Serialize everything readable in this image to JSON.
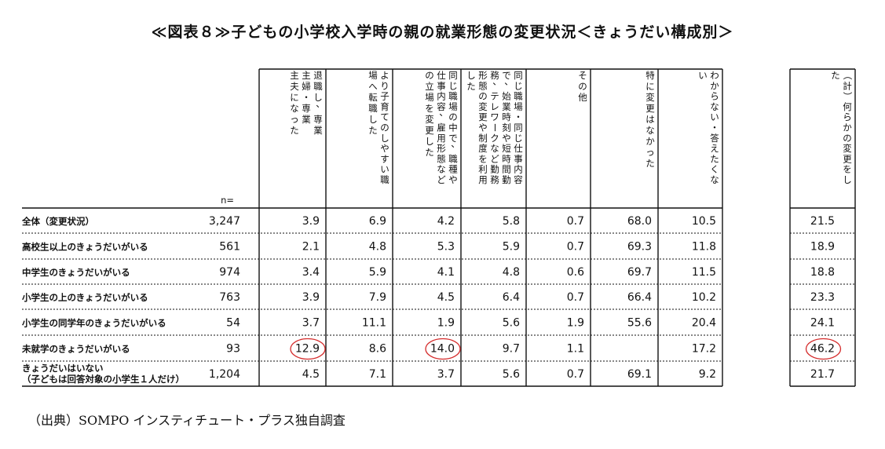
{
  "title": "≪図表８≫子どもの小学校入学時の親の就業形態の変更状況＜きょうだい構成別＞",
  "source": "（出典）SOMPO インスティチュート・プラス独自調査",
  "chart_data": {
    "type": "table",
    "n_header": "n=",
    "columns": [
      {
        "label": "退職し、専業主婦・専業主夫になった",
        "lines": [
          "退職し、専業",
          "主婦・専業",
          "主夫になった"
        ]
      },
      {
        "label": "より子育てのしやすい職場へ転職した",
        "lines": [
          "より子育てのしやすい職",
          "場へ転職した"
        ]
      },
      {
        "label": "同じ職場の中で、職種や仕事内容、雇用形態などの立場を変更した",
        "lines": [
          "同じ職場の中で、職種や",
          "仕事内容、雇用形態など",
          "の立場を変更した"
        ]
      },
      {
        "label": "同じ職場・同じ仕事内容で、始業時刻や短時間勤務、テレワークなど勤務形態の変更や制度を利用した",
        "lines": [
          "同じ職場・同じ仕事内容",
          "で、始業時刻や短時間勤",
          "務、テレワークなど勤務",
          "形態の変更や制度を利用",
          "した"
        ]
      },
      {
        "label": "その他",
        "lines": [
          "その他"
        ]
      },
      {
        "label": "特に変更はなかった",
        "lines": [
          "特に変更はなかった"
        ]
      },
      {
        "label": "わからない・答えたくない",
        "lines": [
          "わからない・答えたくな",
          "い"
        ]
      }
    ],
    "total_column": {
      "label": "（計）何らかの変更をした",
      "lines": [
        "（計）何らかの変更をし",
        "た"
      ]
    },
    "rows": [
      {
        "label": "全体（変更状況）",
        "n": "3,247",
        "values": [
          "3.9",
          "6.9",
          "4.2",
          "5.8",
          "0.7",
          "68.0",
          "10.5"
        ],
        "total": "21.5"
      },
      {
        "label": "高校生以上のきょうだいがいる",
        "n": "561",
        "values": [
          "2.1",
          "4.8",
          "5.3",
          "5.9",
          "0.7",
          "69.3",
          "11.8"
        ],
        "total": "18.9"
      },
      {
        "label": "中学生のきょうだいがいる",
        "n": "974",
        "values": [
          "3.4",
          "5.9",
          "4.1",
          "4.8",
          "0.6",
          "69.7",
          "11.5"
        ],
        "total": "18.8"
      },
      {
        "label": "小学生の上のきょうだいがいる",
        "n": "763",
        "values": [
          "3.9",
          "7.9",
          "4.5",
          "6.4",
          "0.7",
          "66.4",
          "10.2"
        ],
        "total": "23.3"
      },
      {
        "label": "小学生の同学年のきょうだいがいる",
        "n": "54",
        "values": [
          "3.7",
          "11.1",
          "1.9",
          "5.6",
          "1.9",
          "55.6",
          "20.4"
        ],
        "total": "24.1"
      },
      {
        "label": "未就学のきょうだいがいる",
        "n": "93",
        "values": [
          "12.9",
          "8.6",
          "14.0",
          "9.7",
          "1.1",
          "",
          "17.2"
        ],
        "total": "46.2"
      },
      {
        "label": "きょうだいはいない（子どもは回答対象の小学生１人だけ）",
        "label_lines": [
          "きょうだいはいない",
          "（子どもは回答対象の小学生１人だけ）"
        ],
        "n": "1,204",
        "values": [
          "4.5",
          "7.1",
          "3.7",
          "5.6",
          "0.7",
          "69.1",
          "9.2"
        ],
        "total": "21.7"
      }
    ],
    "highlighted_cells": [
      {
        "row": 5,
        "column": 0
      },
      {
        "row": 5,
        "column": 2
      },
      {
        "row": 5,
        "column": "total"
      }
    ],
    "highlight_color": "#d42a2a",
    "line_color": "#111111"
  }
}
